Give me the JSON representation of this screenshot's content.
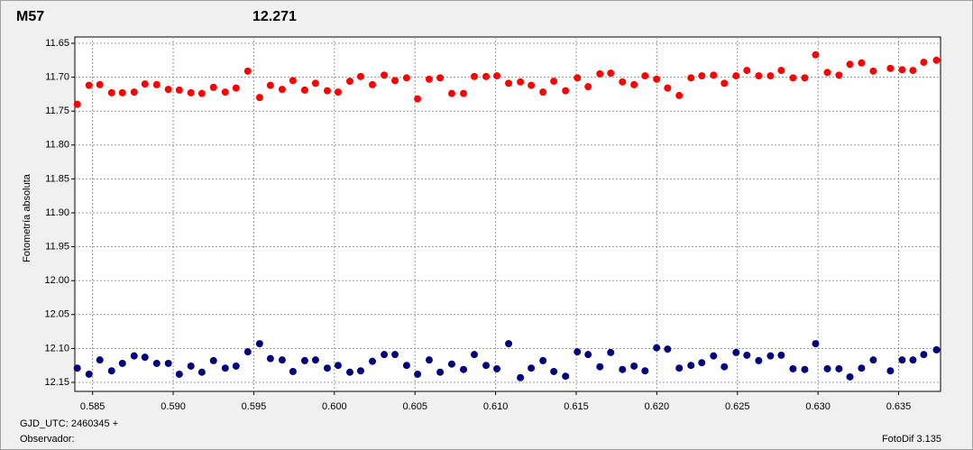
{
  "chart_data": {
    "type": "scatter",
    "title": "M57",
    "subtitle": "12.271",
    "title_color": "#ff0000",
    "subtitle_color": "#00007f",
    "y_label": "Fotometría absoluta",
    "x_label": "GJD_UTC: 2460345 +",
    "observer_label": "Observador:",
    "software_label": "FotoDif 3.135",
    "xlim": [
      0.5839,
      0.6376
    ],
    "ylim": [
      11.6407,
      12.1633
    ],
    "y_inverted": true,
    "grid": true,
    "xticks": [
      0.585,
      {
        "value": 0.59,
        "label": "0.590"
      },
      0.595,
      {
        "value": 0.6,
        "label": "0.600"
      },
      0.605,
      {
        "value": 0.61,
        "label": "0.610"
      },
      0.615,
      {
        "value": 0.62,
        "label": "0.620"
      },
      0.625,
      {
        "value": 0.63,
        "label": "0.630"
      },
      0.635
    ],
    "yticks": [
      11.65,
      {
        "value": 11.7,
        "label": "11.70"
      },
      11.75,
      {
        "value": 11.8,
        "label": "11.80"
      },
      11.85,
      {
        "value": 11.9,
        "label": "11.90"
      },
      11.95,
      {
        "value": 12.0,
        "label": "12.00"
      },
      12.05,
      {
        "value": 12.1,
        "label": "12.10"
      },
      12.15
    ],
    "x": [
      0.58405,
      0.58478,
      0.58545,
      0.58618,
      0.58685,
      0.58758,
      0.58825,
      0.58898,
      0.5897,
      0.59038,
      0.5911,
      0.59178,
      0.5925,
      0.59323,
      0.5939,
      0.59463,
      0.59536,
      0.59603,
      0.59676,
      0.59743,
      0.59816,
      0.59883,
      0.59956,
      0.60023,
      0.60096,
      0.60163,
      0.60236,
      0.60309,
      0.60376,
      0.60448,
      0.60516,
      0.60588,
      0.60656,
      0.60728,
      0.60801,
      0.60868,
      0.60941,
      0.61008,
      0.61081,
      0.61154,
      0.61221,
      0.61294,
      0.61361,
      0.61434,
      0.61507,
      0.61574,
      0.61647,
      0.61714,
      0.61787,
      0.61859,
      0.61927,
      0.61999,
      0.62067,
      0.62139,
      0.62212,
      0.62279,
      0.62352,
      0.62419,
      0.62492,
      0.62559,
      0.62632,
      0.62705,
      0.62772,
      0.62845,
      0.62918,
      0.62985,
      0.63058,
      0.6313,
      0.63198,
      0.6327,
      0.63343,
      0.63449,
      0.63522,
      0.63589,
      0.63656,
      0.63735
    ],
    "series": [
      {
        "color": "#ff0000",
        "values": [
          11.74,
          11.712,
          11.711,
          11.723,
          11.723,
          11.722,
          11.71,
          11.711,
          11.718,
          11.719,
          11.723,
          11.724,
          11.715,
          11.722,
          11.716,
          11.691,
          11.73,
          11.712,
          11.718,
          11.705,
          11.719,
          11.709,
          11.72,
          11.722,
          11.706,
          11.699,
          11.711,
          11.697,
          11.705,
          11.701,
          11.732,
          11.703,
          11.701,
          11.724,
          11.724,
          11.699,
          11.699,
          11.698,
          11.709,
          11.707,
          11.712,
          11.722,
          11.706,
          11.72,
          11.701,
          11.714,
          11.695,
          11.694,
          11.707,
          11.711,
          11.698,
          11.703,
          11.716,
          11.727,
          11.701,
          11.698,
          11.697,
          11.709,
          11.698,
          11.69,
          11.698,
          11.698,
          11.69,
          11.701,
          11.701,
          11.667,
          11.693,
          11.697,
          11.681,
          11.679,
          11.691,
          11.687,
          11.689,
          11.69,
          11.678,
          11.675
        ]
      },
      {
        "color": "#00007f",
        "values": [
          12.129,
          12.138,
          12.117,
          12.133,
          12.122,
          12.111,
          12.113,
          12.122,
          12.122,
          12.138,
          12.126,
          12.135,
          12.118,
          12.129,
          12.126,
          12.105,
          12.093,
          12.115,
          12.117,
          12.134,
          12.118,
          12.117,
          12.129,
          12.125,
          12.135,
          12.133,
          12.119,
          12.109,
          12.109,
          12.125,
          12.138,
          12.117,
          12.135,
          12.123,
          12.131,
          12.109,
          12.125,
          12.13,
          12.093,
          12.143,
          12.129,
          12.118,
          12.134,
          12.141,
          12.105,
          12.109,
          12.127,
          12.106,
          12.131,
          12.126,
          12.133,
          12.099,
          12.101,
          12.129,
          12.125,
          12.121,
          12.111,
          12.127,
          12.106,
          12.11,
          12.118,
          12.111,
          12.11,
          12.13,
          12.131,
          12.093,
          12.13,
          12.13,
          12.142,
          12.129,
          12.117,
          12.133,
          12.117,
          12.117,
          12.109,
          12.102
        ]
      }
    ]
  }
}
